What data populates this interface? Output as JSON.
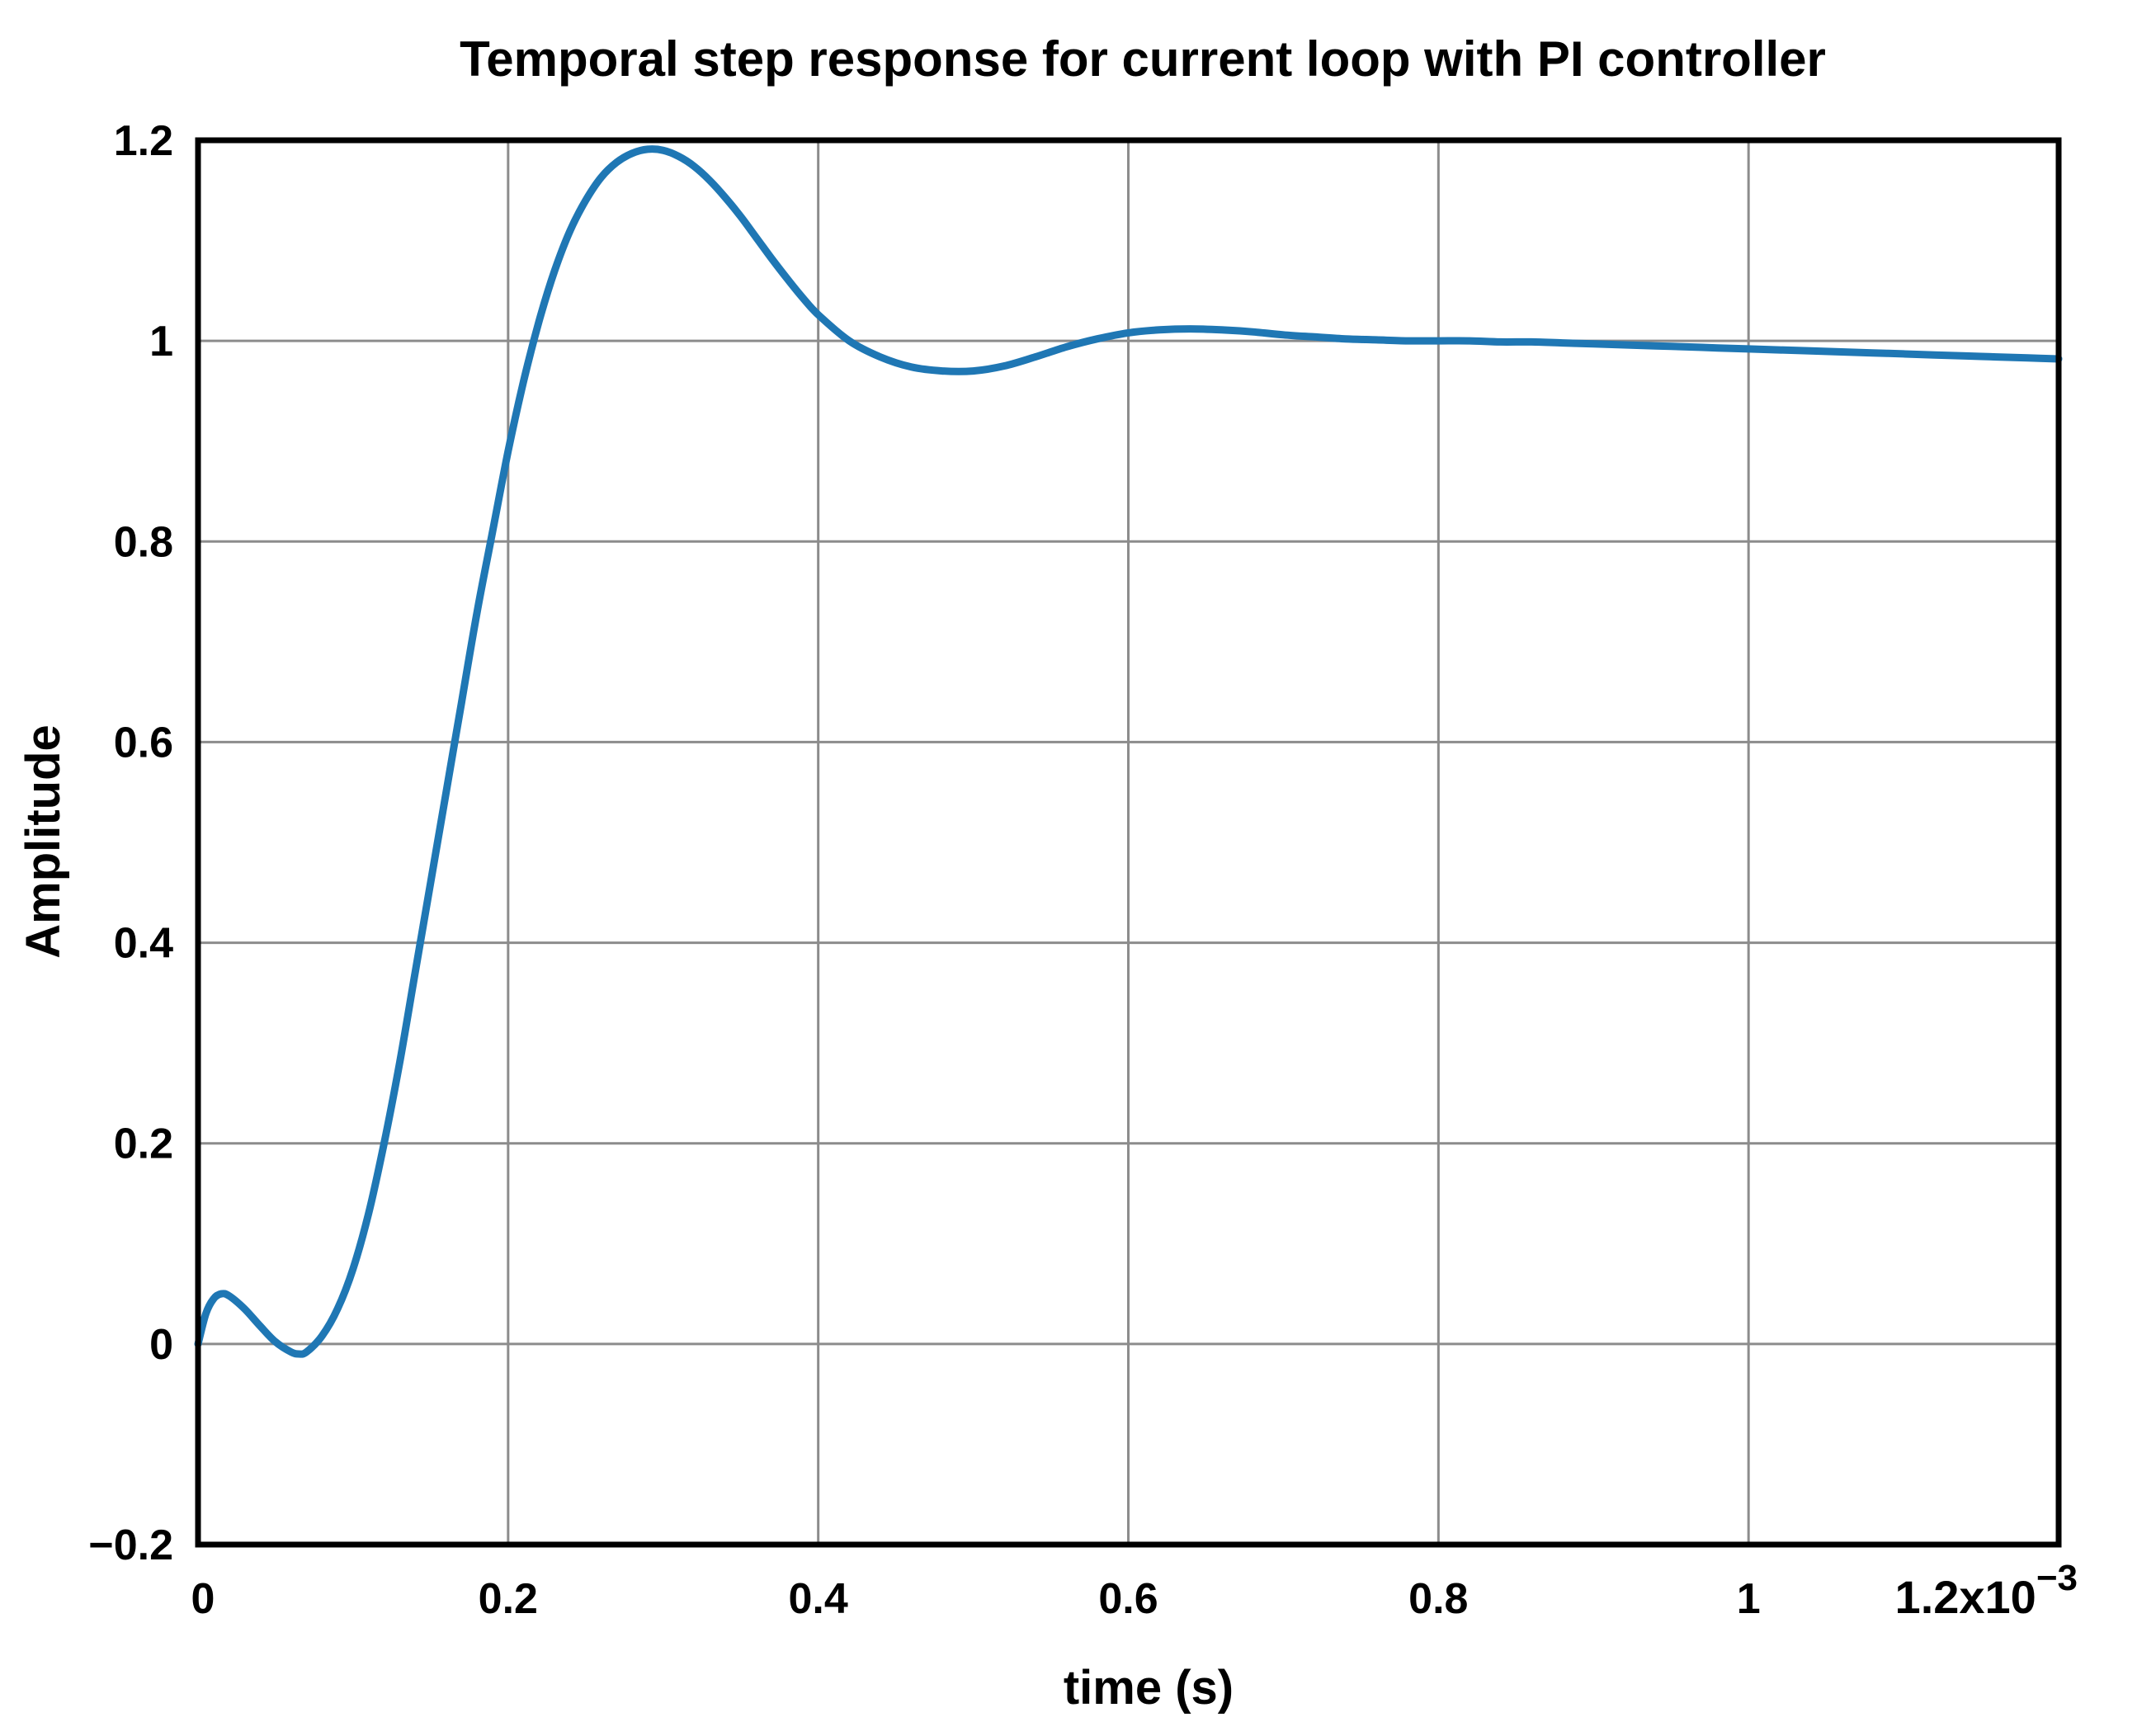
{
  "chart_data": {
    "type": "line",
    "title": "Temporal step response for current loop with PI controller",
    "xlabel": "time (s)",
    "ylabel": "Amplitude",
    "xlim": [
      0,
      1.2
    ],
    "ylim": [
      -0.2,
      1.2
    ],
    "x_ticks": [
      0,
      0.2,
      0.4,
      0.6,
      0.8,
      1
    ],
    "x_tick_labels": [
      "0",
      "0.2",
      "0.4",
      "0.6",
      "0.8",
      "1"
    ],
    "x_last_tick_prefix": "1.2x10",
    "x_last_tick_exponent": "−3",
    "y_ticks": [
      -0.2,
      0,
      0.2,
      0.4,
      0.6,
      0.8,
      1,
      1.2
    ],
    "y_tick_labels": [
      "−0.2",
      "0",
      "0.2",
      "0.4",
      "0.6",
      "0.8",
      "1",
      "1.2"
    ],
    "grid": true,
    "color": "#1f77b4",
    "series": [
      {
        "x": [
          0,
          0.005,
          0.01,
          0.015,
          0.02,
          0.03,
          0.04,
          0.05,
          0.06,
          0.065,
          0.07,
          0.08,
          0.09,
          0.1,
          0.11,
          0.12,
          0.13,
          0.14,
          0.15,
          0.16,
          0.17,
          0.18,
          0.19,
          0.2,
          0.21,
          0.22,
          0.23,
          0.24,
          0.25,
          0.26,
          0.27,
          0.28,
          0.29,
          0.3,
          0.31,
          0.32,
          0.33,
          0.34,
          0.35,
          0.36,
          0.37,
          0.38,
          0.39,
          0.4,
          0.42,
          0.44,
          0.46,
          0.48,
          0.5,
          0.52,
          0.54,
          0.56,
          0.58,
          0.6,
          0.62,
          0.64,
          0.66,
          0.68,
          0.7,
          0.72,
          0.74,
          0.76,
          0.78,
          0.8,
          0.82,
          0.84,
          0.86,
          0.88,
          0.9,
          0.92,
          0.94,
          0.96,
          0.98,
          1.0,
          1.02,
          1.04,
          1.06,
          1.08,
          1.1,
          1.12,
          1.14,
          1.16,
          1.18,
          1.2
        ],
        "y": [
          0,
          0.03,
          0.045,
          0.05,
          0.048,
          0.035,
          0.018,
          0.002,
          -0.008,
          -0.01,
          -0.008,
          0.008,
          0.035,
          0.075,
          0.13,
          0.2,
          0.28,
          0.37,
          0.46,
          0.55,
          0.64,
          0.73,
          0.81,
          0.89,
          0.96,
          1.02,
          1.07,
          1.11,
          1.14,
          1.163,
          1.178,
          1.187,
          1.191,
          1.19,
          1.184,
          1.174,
          1.16,
          1.143,
          1.124,
          1.103,
          1.082,
          1.062,
          1.043,
          1.026,
          1.0,
          0.984,
          0.974,
          0.97,
          0.97,
          0.975,
          0.984,
          0.994,
          1.002,
          1.008,
          1.011,
          1.012,
          1.011,
          1.009,
          1.006,
          1.004,
          1.002,
          1.001,
          1.0,
          1.0,
          1.0,
          0.999,
          0.999,
          0.998,
          0.997,
          0.996,
          0.995,
          0.994,
          0.993,
          0.992,
          0.991,
          0.99,
          0.989,
          0.988,
          0.987,
          0.986,
          0.985,
          0.984,
          0.983,
          0.982
        ]
      }
    ]
  }
}
